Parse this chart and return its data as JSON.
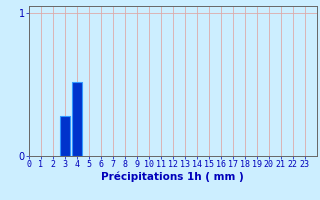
{
  "title": "",
  "xlabel": "Précipitations 1h ( mm )",
  "ylabel": "",
  "xlim": [
    0,
    24
  ],
  "ylim": [
    0,
    1.05
  ],
  "yticks": [
    0,
    1
  ],
  "yticklabels": [
    "0",
    "1"
  ],
  "xtick_positions": [
    0,
    1,
    2,
    3,
    4,
    5,
    6,
    7,
    8,
    9,
    10,
    11,
    12,
    13,
    14,
    15,
    16,
    17,
    18,
    19,
    20,
    21,
    22,
    23
  ],
  "xtick_labels": [
    "0",
    "1",
    "2",
    "3",
    "4",
    "5",
    "6",
    "7",
    "8",
    "9",
    "10",
    "11",
    "12",
    "13",
    "14",
    "15",
    "16",
    "17",
    "18",
    "19",
    "20",
    "21",
    "22",
    "23"
  ],
  "bar_positions": [
    3,
    4
  ],
  "bar_values": [
    0.28,
    0.52
  ],
  "bar_color": "#0033cc",
  "bar_edge_color": "#3399ff",
  "background_color": "#cceeff",
  "grid_color": "#ddaaaa",
  "axis_color": "#666666",
  "text_color": "#0000bb",
  "bar_width": 0.85,
  "xlabel_fontsize": 7.5,
  "tick_fontsize": 6.0
}
